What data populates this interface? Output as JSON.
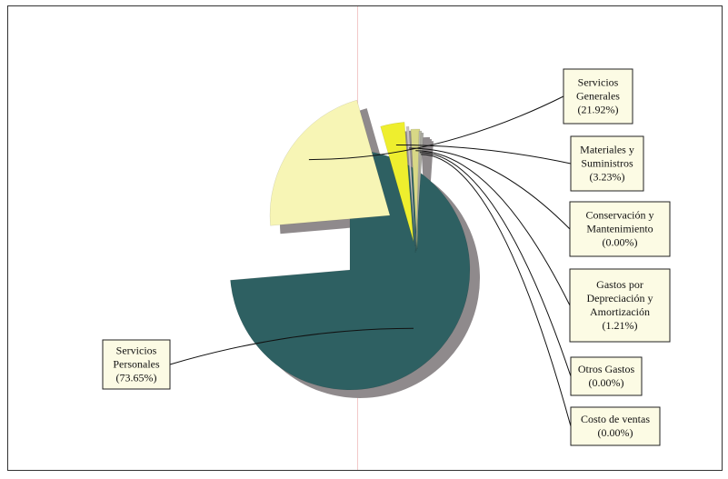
{
  "chart_data": {
    "type": "pie",
    "title": "",
    "exploded": true,
    "shadow": true,
    "slices": [
      {
        "name": "Servicios Personales",
        "value": 73.65,
        "label_lines": [
          "Servicios",
          "Personales",
          "(73.65%)"
        ],
        "color": "#2e6062"
      },
      {
        "name": "Servicios Generales",
        "value": 21.92,
        "label_lines": [
          "Servicios",
          "Generales",
          "(21.92%)"
        ],
        "color": "#f7f5b5"
      },
      {
        "name": "Materiales y Suministros",
        "value": 3.23,
        "label_lines": [
          "Materiales y",
          "Suministros",
          "(3.23%)"
        ],
        "color": "#eeee2e"
      },
      {
        "name": "Conservación y Mantenimiento",
        "value": 0.0,
        "label_lines": [
          "Conservación y",
          "Mantenimiento",
          "(0.00%)"
        ],
        "color": "#c8c0c0"
      },
      {
        "name": "Gastos por Depreciación y Amortización",
        "value": 1.21,
        "label_lines": [
          "Gastos por",
          "Depreciación y",
          "Amortización",
          "(1.21%)"
        ],
        "color": "#d8d886"
      },
      {
        "name": "Otros Gastos",
        "value": 0.0,
        "label_lines": [
          "Otros Gastos",
          "(0.00%)"
        ],
        "color": "#b8b8a8"
      },
      {
        "name": "Costo de ventas",
        "value": 0.0,
        "label_lines": [
          "Costo de ventas",
          "(0.00%)"
        ],
        "color": "#a8a8a0"
      }
    ],
    "colors": {
      "shadow": "#8f8a8c",
      "label_box_fill": "#fcfbe4",
      "label_box_border": "#222222"
    }
  }
}
